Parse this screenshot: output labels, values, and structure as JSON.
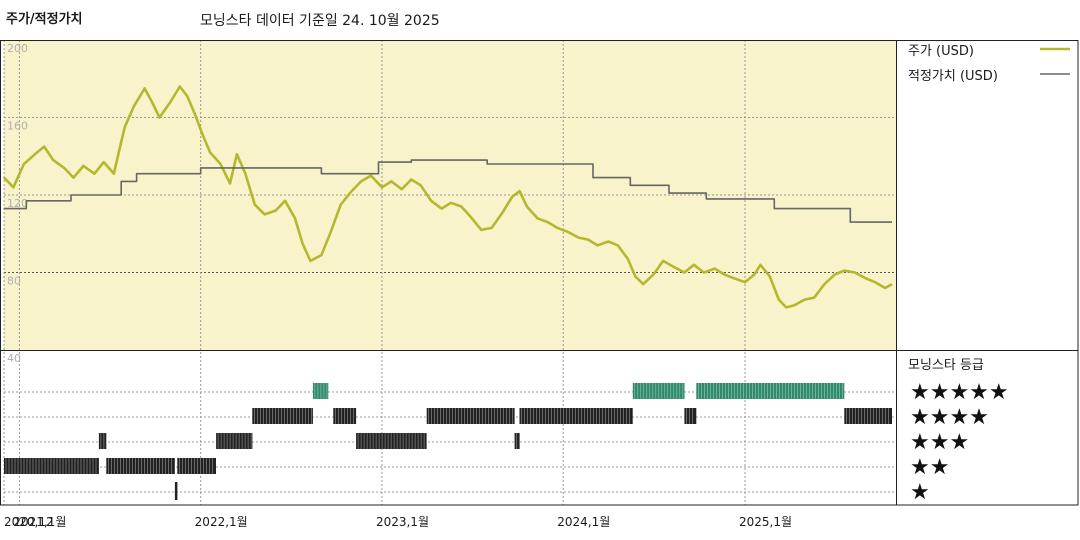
{
  "header": {
    "title": "주가/적정가치",
    "subtitle": "모닝스타 데이터 기준일 24. 10월 2025"
  },
  "chart_data": {
    "type": "line",
    "ylim": [
      40,
      200
    ],
    "yticks": [
      200,
      160,
      120,
      80,
      40
    ],
    "ytick_labels": [
      "200",
      "160",
      "120",
      "80",
      "40"
    ],
    "xlim": [
      "2020-12-01",
      "2025-11-01"
    ],
    "xticks": [
      {
        "date": "2020-12-01",
        "label": "2020,12"
      },
      {
        "date": "2021-01-01",
        "label": "2021,1월"
      },
      {
        "date": "2022-01-01",
        "label": "2022,1월"
      },
      {
        "date": "2023-01-01",
        "label": "2023,1월"
      },
      {
        "date": "2024-01-01",
        "label": "2024,1월"
      },
      {
        "date": "2025-01-01",
        "label": "2025,1월"
      }
    ],
    "grid": true,
    "legend_position": "right",
    "series": [
      {
        "name": "주가 (USD)",
        "color": "#b5b82e",
        "points": [
          [
            "2020-12-01",
            129
          ],
          [
            "2020-12-20",
            124
          ],
          [
            "2021-01-10",
            136
          ],
          [
            "2021-02-01",
            141
          ],
          [
            "2021-02-20",
            145
          ],
          [
            "2021-03-10",
            138
          ],
          [
            "2021-04-01",
            134
          ],
          [
            "2021-04-20",
            129
          ],
          [
            "2021-05-10",
            135
          ],
          [
            "2021-06-01",
            131
          ],
          [
            "2021-06-20",
            137
          ],
          [
            "2021-07-10",
            131
          ],
          [
            "2021-08-01",
            155
          ],
          [
            "2021-08-20",
            166
          ],
          [
            "2021-09-10",
            175
          ],
          [
            "2021-09-25",
            168
          ],
          [
            "2021-10-10",
            160
          ],
          [
            "2021-11-01",
            168
          ],
          [
            "2021-11-20",
            176
          ],
          [
            "2021-12-05",
            171
          ],
          [
            "2021-12-20",
            162
          ],
          [
            "2022-01-05",
            151
          ],
          [
            "2022-01-20",
            142
          ],
          [
            "2022-02-10",
            136
          ],
          [
            "2022-03-01",
            126
          ],
          [
            "2022-03-15",
            141
          ],
          [
            "2022-04-01",
            131
          ],
          [
            "2022-04-20",
            115
          ],
          [
            "2022-05-10",
            110
          ],
          [
            "2022-06-01",
            112
          ],
          [
            "2022-06-20",
            117
          ],
          [
            "2022-07-10",
            108
          ],
          [
            "2022-07-25",
            95
          ],
          [
            "2022-08-10",
            86
          ],
          [
            "2022-09-01",
            89
          ],
          [
            "2022-09-20",
            101
          ],
          [
            "2022-10-10",
            115
          ],
          [
            "2022-11-01",
            122
          ],
          [
            "2022-11-20",
            127
          ],
          [
            "2022-12-10",
            130
          ],
          [
            "2023-01-01",
            124
          ],
          [
            "2023-01-20",
            127
          ],
          [
            "2023-02-10",
            123
          ],
          [
            "2023-03-01",
            128
          ],
          [
            "2023-03-20",
            125
          ],
          [
            "2023-04-10",
            117
          ],
          [
            "2023-05-01",
            113
          ],
          [
            "2023-05-20",
            116
          ],
          [
            "2023-06-10",
            114
          ],
          [
            "2023-07-01",
            108
          ],
          [
            "2023-07-20",
            102
          ],
          [
            "2023-08-10",
            103
          ],
          [
            "2023-09-01",
            111
          ],
          [
            "2023-09-20",
            119
          ],
          [
            "2023-10-05",
            122
          ],
          [
            "2023-10-20",
            114
          ],
          [
            "2023-11-10",
            108
          ],
          [
            "2023-12-01",
            106
          ],
          [
            "2023-12-20",
            103
          ],
          [
            "2024-01-10",
            101
          ],
          [
            "2024-02-01",
            98
          ],
          [
            "2024-02-20",
            97
          ],
          [
            "2024-03-10",
            94
          ],
          [
            "2024-04-01",
            96
          ],
          [
            "2024-04-20",
            94
          ],
          [
            "2024-05-10",
            87
          ],
          [
            "2024-05-25",
            78
          ],
          [
            "2024-06-10",
            74
          ],
          [
            "2024-07-01",
            79
          ],
          [
            "2024-07-20",
            86
          ],
          [
            "2024-08-10",
            83
          ],
          [
            "2024-09-01",
            80
          ],
          [
            "2024-09-20",
            84
          ],
          [
            "2024-10-10",
            80
          ],
          [
            "2024-11-01",
            82
          ],
          [
            "2024-11-20",
            79
          ],
          [
            "2024-12-10",
            77
          ],
          [
            "2025-01-01",
            75
          ],
          [
            "2025-01-20",
            79
          ],
          [
            "2025-02-01",
            84
          ],
          [
            "2025-02-20",
            78
          ],
          [
            "2025-03-10",
            66
          ],
          [
            "2025-03-25",
            62
          ],
          [
            "2025-04-10",
            63
          ],
          [
            "2025-05-01",
            66
          ],
          [
            "2025-05-20",
            67
          ],
          [
            "2025-06-10",
            74
          ],
          [
            "2025-07-01",
            79
          ],
          [
            "2025-07-20",
            81
          ],
          [
            "2025-08-10",
            80
          ],
          [
            "2025-09-01",
            77
          ],
          [
            "2025-09-20",
            75
          ],
          [
            "2025-10-10",
            72
          ],
          [
            "2025-10-24",
            74
          ]
        ]
      },
      {
        "name": "적정가치 (USD)",
        "color": "#666666",
        "points": [
          [
            "2020-12-01",
            113
          ],
          [
            "2021-01-15",
            113
          ],
          [
            "2021-01-15",
            117
          ],
          [
            "2021-04-15",
            117
          ],
          [
            "2021-04-15",
            120
          ],
          [
            "2021-07-25",
            120
          ],
          [
            "2021-07-25",
            127
          ],
          [
            "2021-08-25",
            127
          ],
          [
            "2021-08-25",
            131
          ],
          [
            "2022-01-01",
            131
          ],
          [
            "2022-01-01",
            134
          ],
          [
            "2022-09-01",
            134
          ],
          [
            "2022-09-01",
            131
          ],
          [
            "2022-12-25",
            131
          ],
          [
            "2022-12-25",
            137
          ],
          [
            "2023-03-01",
            137
          ],
          [
            "2023-03-01",
            138
          ],
          [
            "2023-08-01",
            138
          ],
          [
            "2023-08-01",
            136
          ],
          [
            "2024-03-01",
            136
          ],
          [
            "2024-03-01",
            129
          ],
          [
            "2024-05-15",
            129
          ],
          [
            "2024-05-15",
            125
          ],
          [
            "2024-08-01",
            125
          ],
          [
            "2024-08-01",
            121
          ],
          [
            "2024-10-15",
            121
          ],
          [
            "2024-10-15",
            118
          ],
          [
            "2025-03-01",
            118
          ],
          [
            "2025-03-01",
            113
          ],
          [
            "2025-08-01",
            113
          ],
          [
            "2025-08-01",
            106
          ],
          [
            "2025-10-24",
            106
          ]
        ]
      }
    ],
    "star_rating": {
      "title": "모닝스타 등급",
      "levels": [
        "★★★★★",
        "★★★★",
        "★★★",
        "★★",
        "★"
      ],
      "periods": [
        {
          "start": "2020-12-01",
          "end": "2021-06-10",
          "stars": 2
        },
        {
          "start": "2021-06-10",
          "end": "2021-06-25",
          "stars": 3
        },
        {
          "start": "2021-06-25",
          "end": "2021-11-10",
          "stars": 2
        },
        {
          "start": "2021-11-10",
          "end": "2021-11-15",
          "stars": 1
        },
        {
          "start": "2021-11-15",
          "end": "2022-02-01",
          "stars": 2
        },
        {
          "start": "2022-02-01",
          "end": "2022-04-15",
          "stars": 3
        },
        {
          "start": "2022-04-15",
          "end": "2022-08-15",
          "stars": 4
        },
        {
          "start": "2022-08-15",
          "end": "2022-09-15",
          "stars": 5
        },
        {
          "start": "2022-09-25",
          "end": "2022-11-10",
          "stars": 4
        },
        {
          "start": "2022-11-10",
          "end": "2023-04-01",
          "stars": 3
        },
        {
          "start": "2023-04-01",
          "end": "2023-09-25",
          "stars": 4
        },
        {
          "start": "2023-09-25",
          "end": "2023-10-05",
          "stars": 3
        },
        {
          "start": "2023-10-05",
          "end": "2024-05-20",
          "stars": 4
        },
        {
          "start": "2024-05-20",
          "end": "2024-09-01",
          "stars": 5
        },
        {
          "start": "2024-09-01",
          "end": "2024-09-25",
          "stars": 4
        },
        {
          "start": "2024-09-25",
          "end": "2025-07-20",
          "stars": 5
        },
        {
          "start": "2025-07-20",
          "end": "2025-10-24",
          "stars": 4
        }
      ]
    }
  },
  "colors": {
    "plot_bg": "#f8f3cb",
    "price_line": "#b5b82e",
    "fair_value_line": "#666666",
    "rating_five_star": "#2d8a6a",
    "rating_default": "#222222"
  }
}
